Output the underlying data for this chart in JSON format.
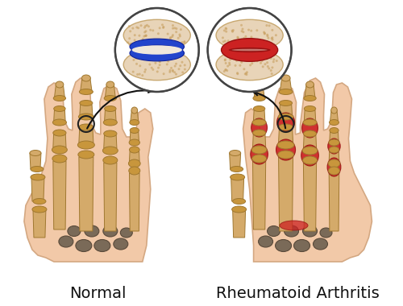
{
  "bg_color": "#ffffff",
  "skin_color": "#f2c9a8",
  "skin_outline": "#d4a882",
  "bone_light": "#d4aa6a",
  "bone_mid": "#c8963c",
  "bone_dark": "#a07830",
  "carpal_color": "#7a6a58",
  "carpal_dark": "#5a4a3a",
  "red_color": "#cc2222",
  "red_dark": "#991111",
  "blue_color": "#2244cc",
  "blue_dark": "#112299",
  "circle_bg": "#f5ede0",
  "circle_border": "#333333",
  "arrow_color": "#111111",
  "label_normal": "Normal",
  "label_ra": "Rheumatoid Arthritis",
  "label_fontsize": 14,
  "title_color": "#111111"
}
